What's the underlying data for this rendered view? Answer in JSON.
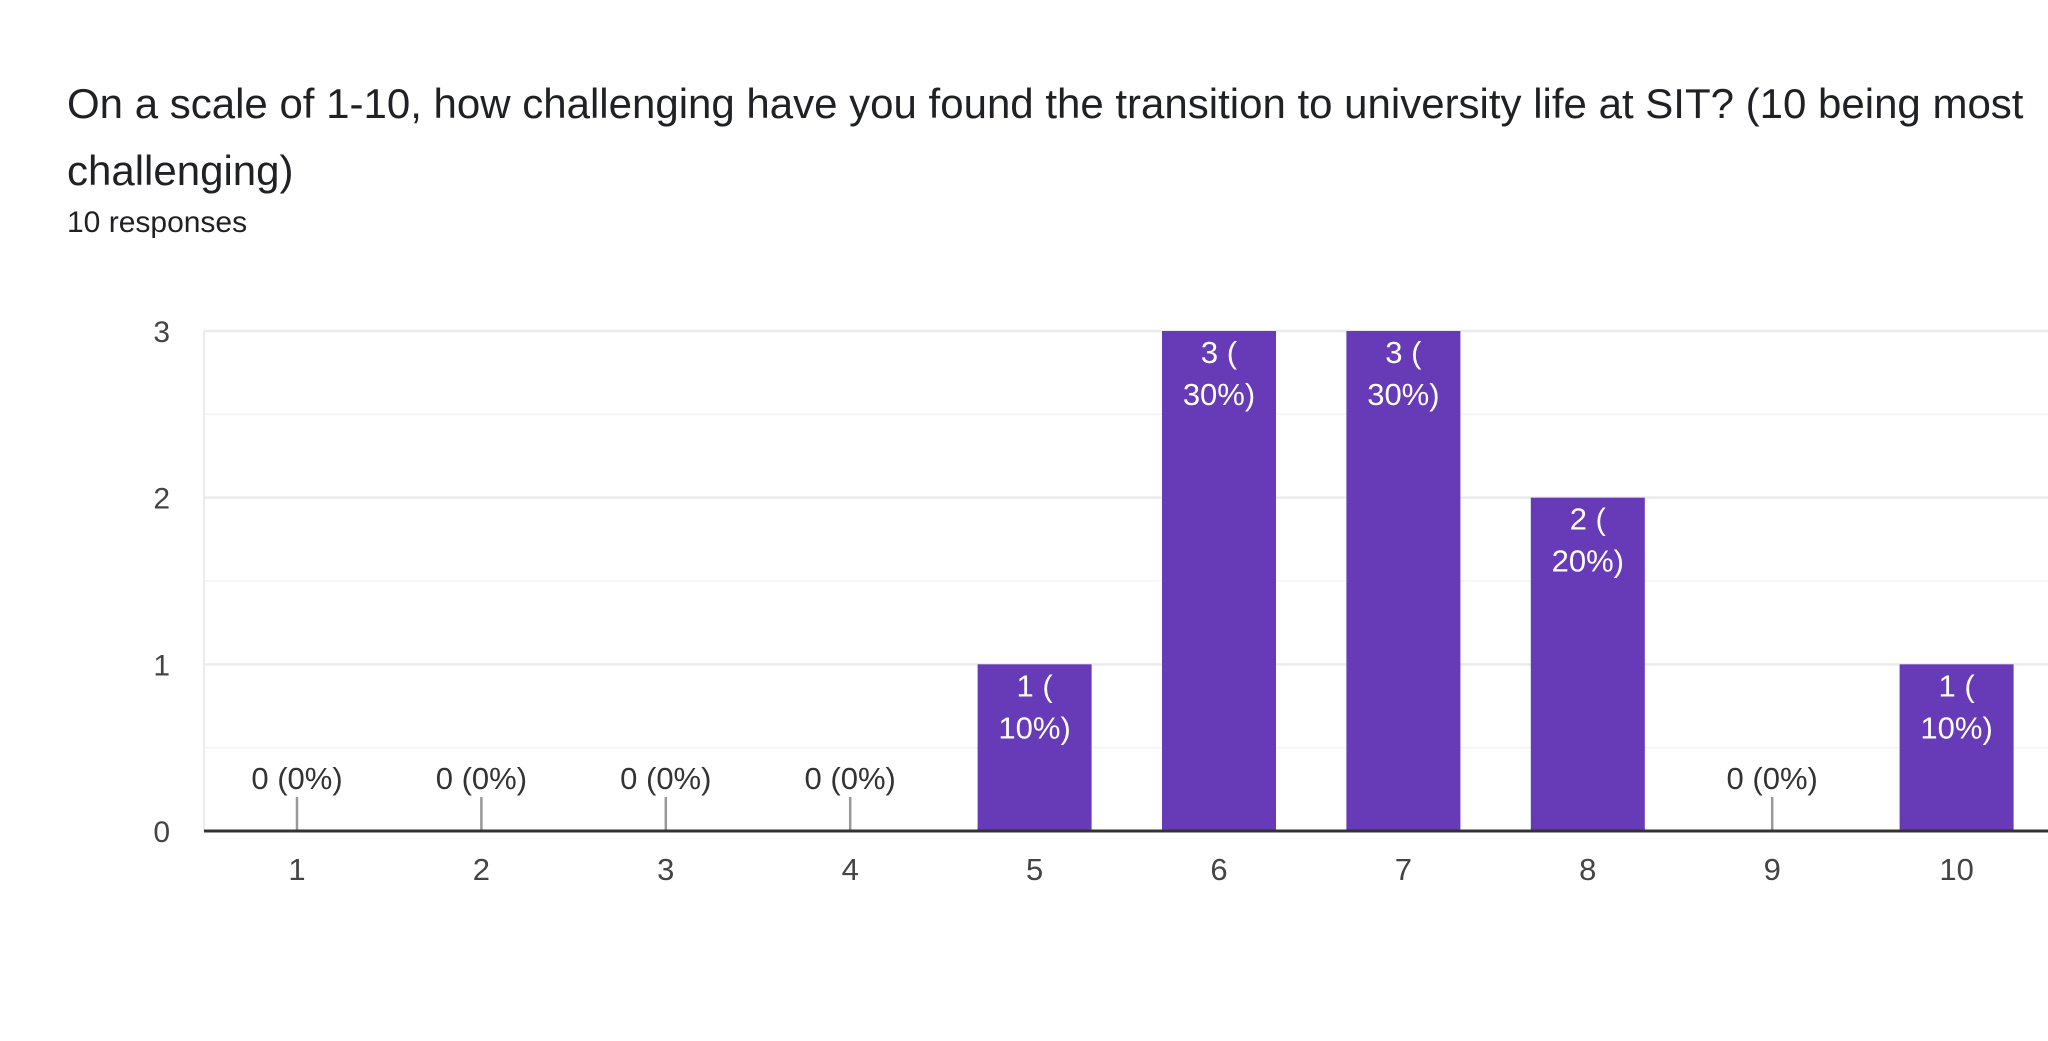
{
  "question": {
    "title": "On a scale of 1-10, how challenging have you found the transition to university life at SIT? (10 being most challenging)",
    "responses": "10 responses"
  },
  "colors": {
    "bar": "#673ab7",
    "inside_label": "#ffffff",
    "outside_label": "#333333",
    "grid": "#ebebeb",
    "grid_minor": "#f3f3f3",
    "axis": "#333333",
    "tick_text": "#444444"
  },
  "chart_data": {
    "type": "bar",
    "categories": [
      "1",
      "2",
      "3",
      "4",
      "5",
      "6",
      "7",
      "8",
      "9",
      "10"
    ],
    "values": [
      0,
      0,
      0,
      0,
      1,
      3,
      3,
      2,
      0,
      1
    ],
    "labels": [
      [
        "0 (0%)"
      ],
      [
        "0 (0%)"
      ],
      [
        "0 (0%)"
      ],
      [
        "0 (0%)"
      ],
      [
        "1 (",
        "10%)"
      ],
      [
        "3 (",
        "30%)"
      ],
      [
        "3 (",
        "30%)"
      ],
      [
        "2 (",
        "20%)"
      ],
      [
        "0 (0%)"
      ],
      [
        "1 (",
        "10%)"
      ]
    ],
    "yticks": [
      "0",
      "1",
      "2",
      "3"
    ],
    "ylim": [
      0,
      3
    ],
    "grid": true
  }
}
